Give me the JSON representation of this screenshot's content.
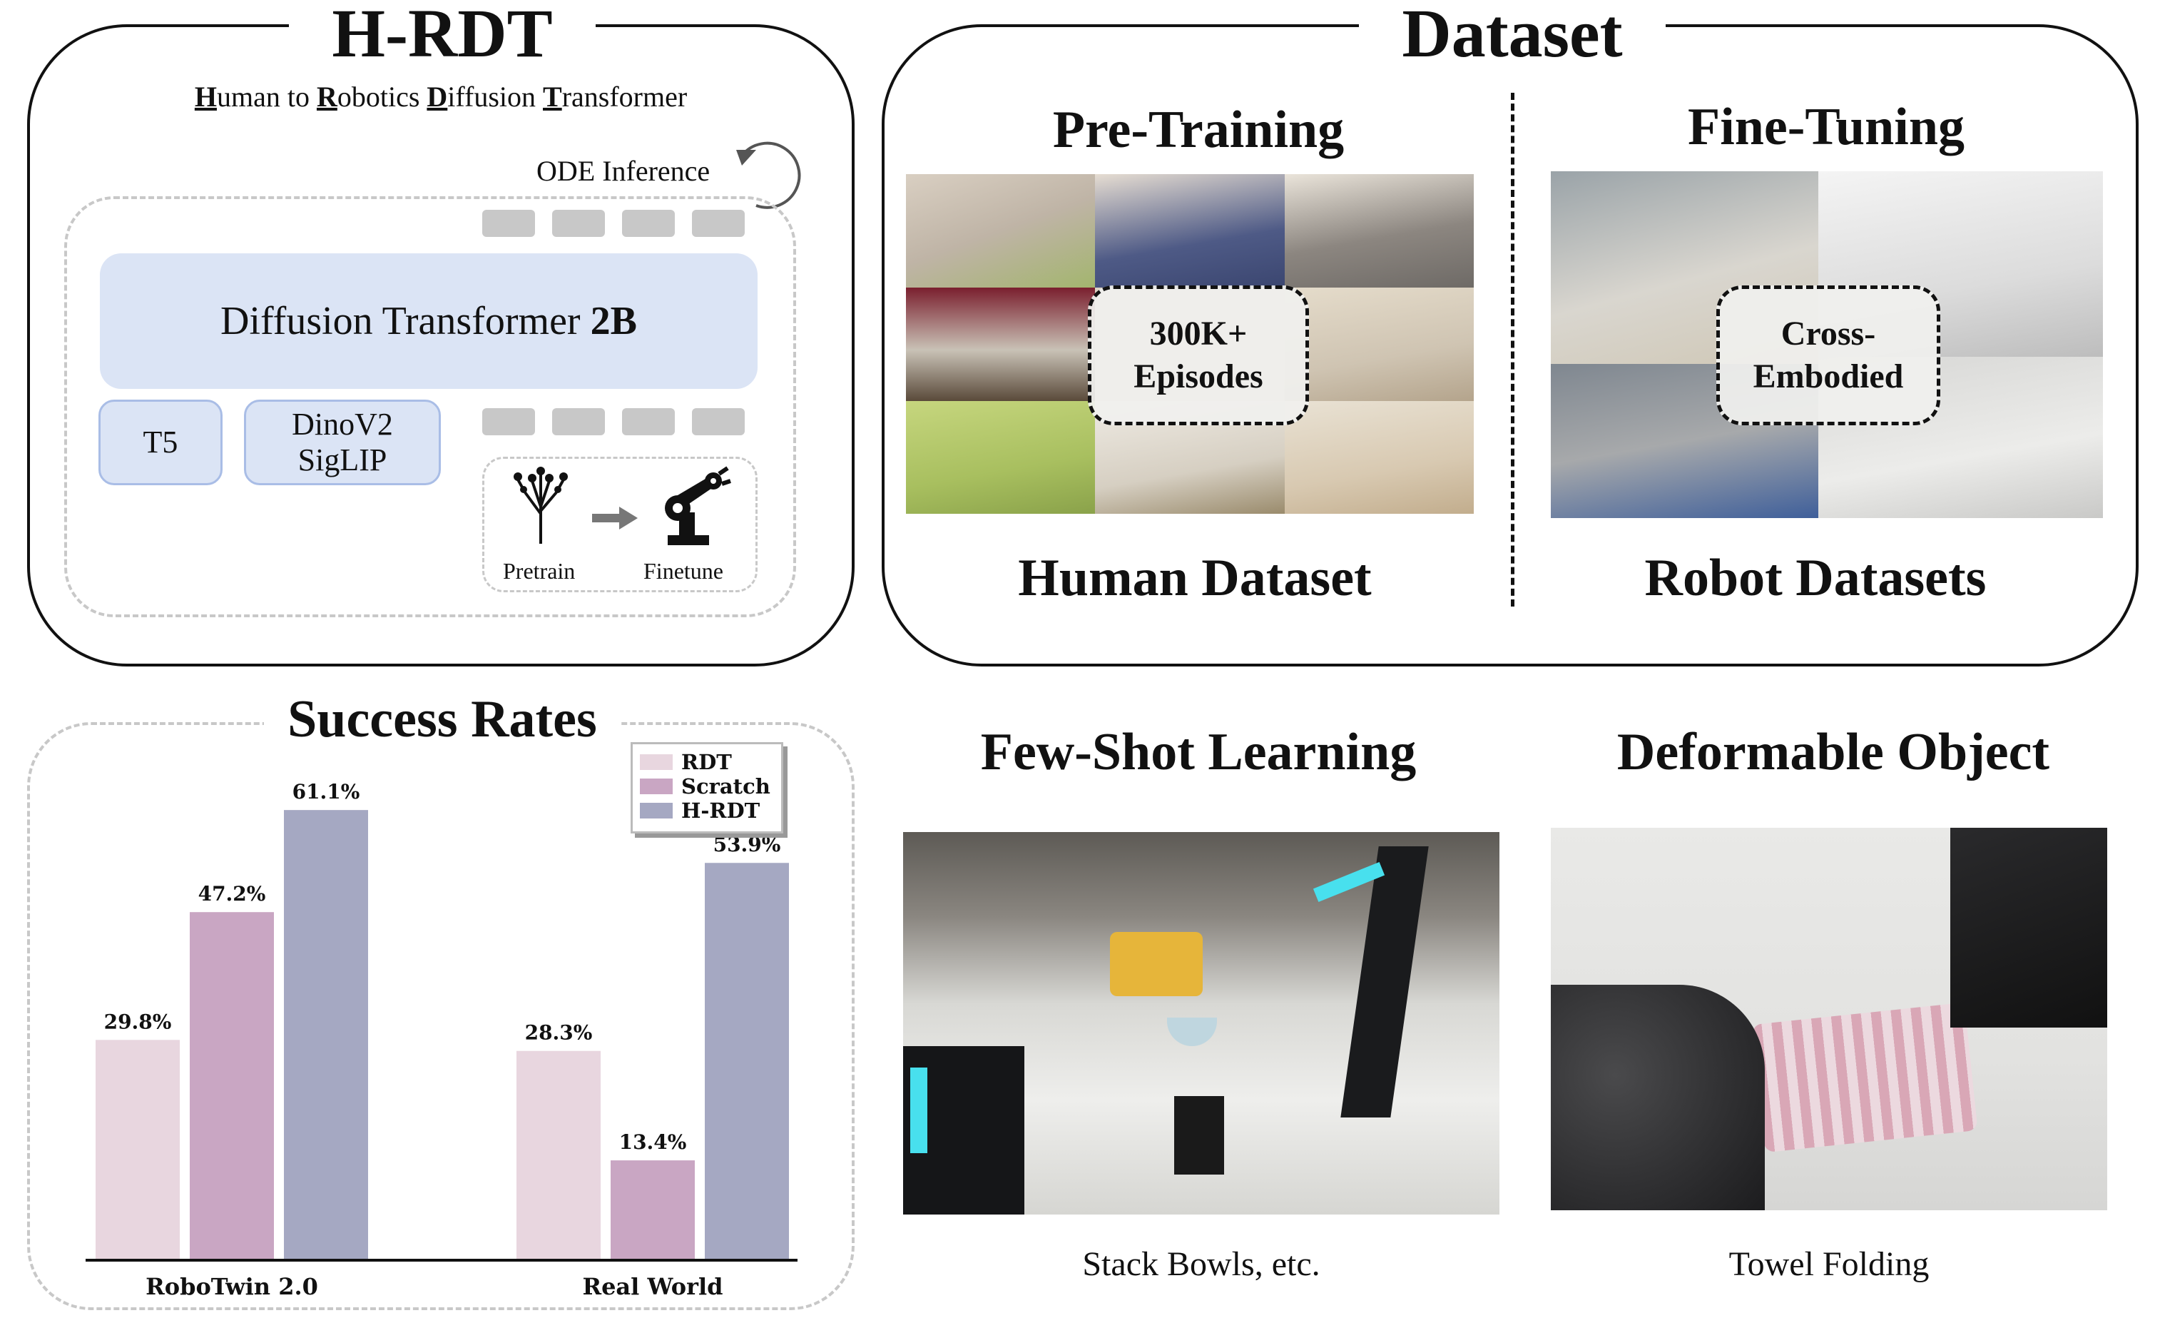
{
  "hrdt": {
    "title": "H-RDT",
    "subtitle_parts": [
      {
        "u": "H",
        "rest": "uman to "
      },
      {
        "u": "R",
        "rest": "obotics "
      },
      {
        "u": "D",
        "rest": "iffusion "
      },
      {
        "u": "T",
        "rest": "ransformer"
      }
    ],
    "ode_label": "ODE Inference",
    "transformer_label": "Diffusion Transformer ",
    "transformer_size": "2B",
    "encoder_t5": "T5",
    "encoder_vision_1": "DinoV2",
    "encoder_vision_2": "SigLIP",
    "pretrain_label": "Pretrain",
    "finetune_label": "Finetune",
    "pretrain_icon": "tree-icon",
    "finetune_icon": "robot-arm-icon"
  },
  "dataset": {
    "title": "Dataset",
    "pretraining_title": "Pre-Training",
    "finetuning_title": "Fine-Tuning",
    "pretraining_badge_1": "300K+",
    "pretraining_badge_2": "Episodes",
    "finetuning_badge_1": "Cross-",
    "finetuning_badge_2": "Embodied",
    "human_caption": "Human Dataset",
    "robot_caption": "Robot Datasets"
  },
  "chart_data": {
    "type": "bar",
    "title": "Success Rates",
    "categories": [
      "RoboTwin 2.0",
      "Real World"
    ],
    "series": [
      {
        "name": "RDT",
        "values": [
          29.8,
          28.3
        ],
        "labels": [
          "29.8%",
          "28.3%"
        ],
        "color": "#e8d6df"
      },
      {
        "name": "Scratch",
        "values": [
          47.2,
          13.4
        ],
        "labels": [
          "47.2%",
          "13.4%"
        ],
        "color": "#c9a6c3"
      },
      {
        "name": "H-RDT",
        "values": [
          61.1,
          53.9
        ],
        "labels": [
          "61.1%",
          "53.9%"
        ],
        "color": "#a5a8c2"
      }
    ],
    "ylim": [
      0,
      65
    ],
    "legend": "top-right",
    "grid": false
  },
  "fewshot": {
    "title": "Few-Shot Learning",
    "caption": "Stack Bowls, etc."
  },
  "deformable": {
    "title": "Deformable Object",
    "caption": "Towel Folding"
  }
}
